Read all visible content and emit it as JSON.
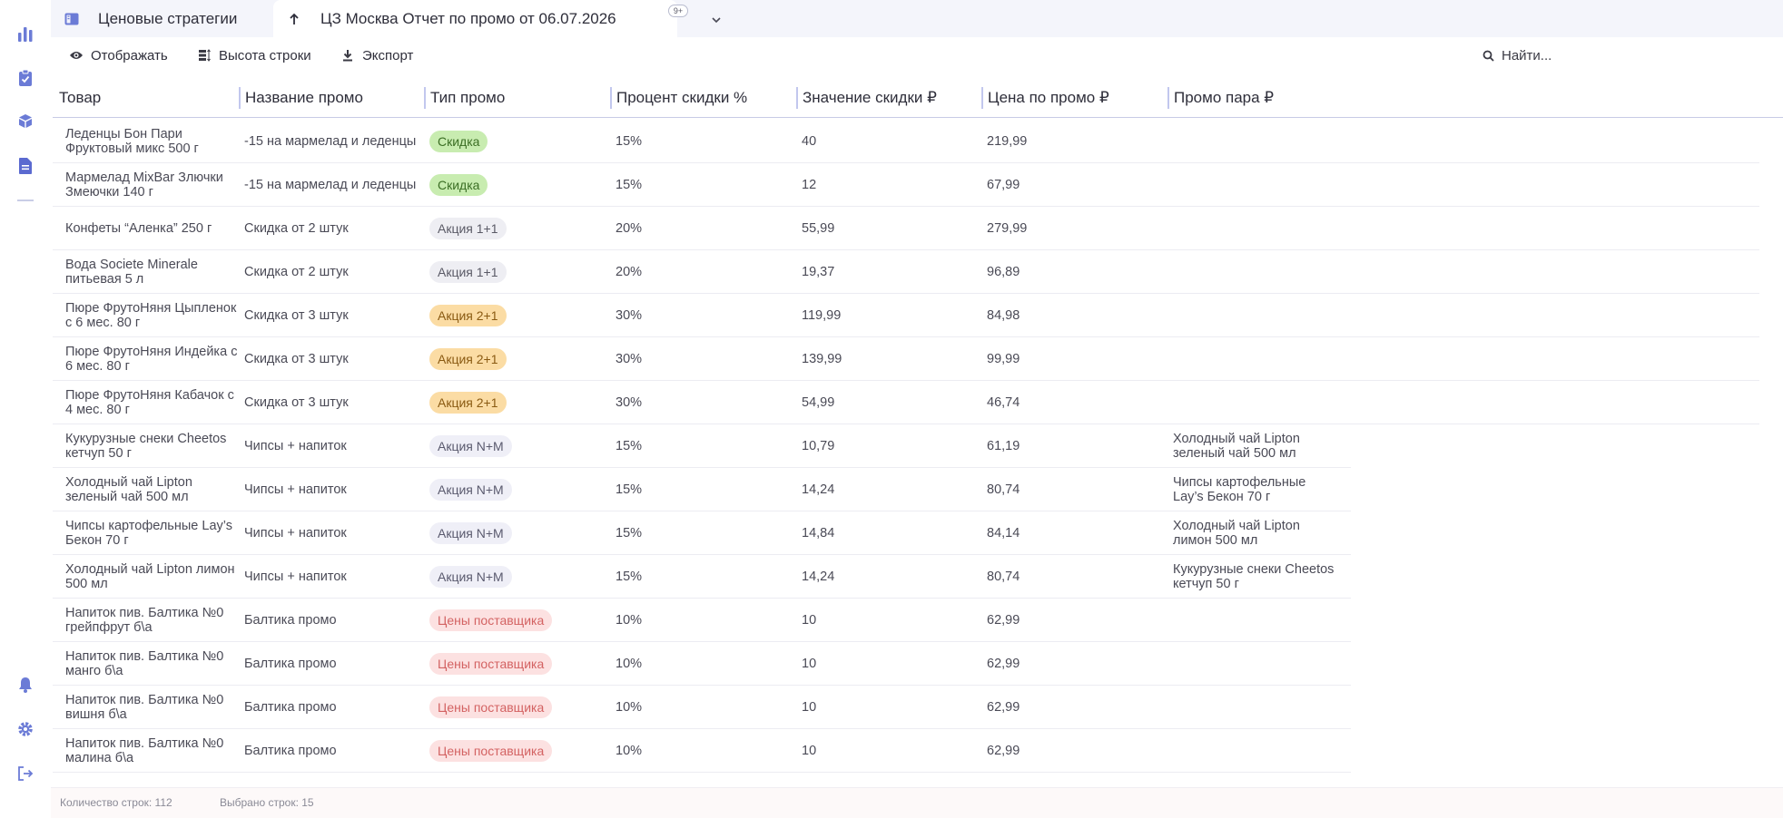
{
  "colors": {
    "accent": "#5b6ad0",
    "green": "#c8ecb0",
    "orange": "#fbdca4",
    "red": "#fce1e1"
  },
  "sidebar": {
    "top_icons": [
      "chart-icon",
      "clipboard-check-icon",
      "box-hand-icon",
      "document-icon"
    ],
    "bottom_icons": [
      "bell-icon",
      "gear-icon",
      "logout-icon"
    ]
  },
  "tabs": [
    {
      "label": "Ценовые стратегии",
      "icon": "sidebar-panel-icon"
    },
    {
      "label": "ЦЗ Москва Отчет по промо от 06.07.2026",
      "icon": "arrow-up-icon"
    }
  ],
  "tab_more": {
    "badge": "9+"
  },
  "toolbar": {
    "display": "Отображать",
    "row_height": "Высота строки",
    "export": "Экспорт",
    "search_placeholder": "Найти..."
  },
  "table": {
    "columns": [
      "Товар",
      "Название промо",
      "Тип промо",
      "Процент скидки %",
      "Значение скидки ₽",
      "Цена по промо ₽",
      "Промо пара ₽"
    ],
    "rows": [
      {
        "product": "Леденцы Бон Пари Фруктовый микс 500 г",
        "promo": "-15 на мармелад и леденцы",
        "type": "Скидка",
        "type_style": "green",
        "percent": "15%",
        "value": "40",
        "price": "219,99",
        "pair": ""
      },
      {
        "product": "Мармелад MixBar Злючки Змеючки 140 г",
        "promo": "-15 на мармелад и леденцы",
        "type": "Скидка",
        "type_style": "green",
        "percent": "15%",
        "value": "12",
        "price": "67,99",
        "pair": ""
      },
      {
        "product": "Конфеты “Аленка” 250 г",
        "promo": "Скидка от 2 штук",
        "type": "Акция 1+1",
        "type_style": "gray",
        "percent": "20%",
        "value": "55,99",
        "price": "279,99",
        "pair": ""
      },
      {
        "product": "Вода Societe Minerale питьевая 5 л",
        "promo": "Скидка от 2 штук",
        "type": "Акция 1+1",
        "type_style": "gray",
        "percent": "20%",
        "value": "19,37",
        "price": "96,89",
        "pair": ""
      },
      {
        "product": "Пюре ФрутоНяня Цыпленок с 6 мес. 80 г",
        "promo": "Скидка от 3 штук",
        "type": "Акция 2+1",
        "type_style": "orange",
        "percent": "30%",
        "value": "119,99",
        "price": "84,98",
        "pair": ""
      },
      {
        "product": "Пюре ФрутоНяня Индейка с 6 мес. 80 г",
        "promo": "Скидка от 3 штук",
        "type": "Акция 2+1",
        "type_style": "orange",
        "percent": "30%",
        "value": "139,99",
        "price": "99,99",
        "pair": ""
      },
      {
        "product": "Пюре ФрутоНяня Кабачок с 4 мес. 80 г",
        "promo": "Скидка от 3 штук",
        "type": "Акция 2+1",
        "type_style": "orange",
        "percent": "30%",
        "value": "54,99",
        "price": "46,74",
        "pair": ""
      },
      {
        "product": "Кукурузные снеки Cheetos кетчуп 50 г",
        "promo": "Чипсы + напиток",
        "type": "Акция N+M",
        "type_style": "purple",
        "percent": "15%",
        "value": "10,79",
        "price": "61,19",
        "pair": "Холодный чай Lipton зеленый чай 500 мл"
      },
      {
        "product": "Холодный чай Lipton зеленый чай 500 мл",
        "promo": "Чипсы + напиток",
        "type": "Акция N+M",
        "type_style": "purple",
        "percent": "15%",
        "value": "14,24",
        "price": "80,74",
        "pair": "Чипсы картофельные Lay’s Бекон 70 г"
      },
      {
        "product": "Чипсы картофельные Lay’s Бекон 70 г",
        "promo": "Чипсы + напиток",
        "type": "Акция N+M",
        "type_style": "purple",
        "percent": "15%",
        "value": "14,84",
        "price": "84,14",
        "pair": "Холодный чай Lipton лимон 500 мл"
      },
      {
        "product": "Холодный чай Lipton лимон 500 мл",
        "promo": "Чипсы + напиток",
        "type": "Акция N+M",
        "type_style": "purple",
        "percent": "15%",
        "value": "14,24",
        "price": "80,74",
        "pair": "Кукурузные снеки Cheetos кетчуп 50 г"
      },
      {
        "product": "Напиток пив. Балтика №0 грейпфрут б\\а",
        "promo": "Балтика промо",
        "type": "Цены поставщика",
        "type_style": "red",
        "percent": "10%",
        "value": "10",
        "price": "62,99",
        "pair": ""
      },
      {
        "product": "Напиток пив. Балтика №0 манго б\\а",
        "promo": "Балтика промо",
        "type": "Цены поставщика",
        "type_style": "red",
        "percent": "10%",
        "value": "10",
        "price": "62,99",
        "pair": ""
      },
      {
        "product": "Напиток пив. Балтика №0 вишня б\\а",
        "promo": "Балтика промо",
        "type": "Цены поставщика",
        "type_style": "red",
        "percent": "10%",
        "value": "10",
        "price": "62,99",
        "pair": ""
      },
      {
        "product": "Напиток пив. Балтика №0 малина б\\а",
        "promo": "Балтика промо",
        "type": "Цены поставщика",
        "type_style": "red",
        "percent": "10%",
        "value": "10",
        "price": "62,99",
        "pair": ""
      }
    ]
  },
  "footer": {
    "rows_count": "Количество строк: 112",
    "rows_selected": "Выбрано строк: 15"
  }
}
